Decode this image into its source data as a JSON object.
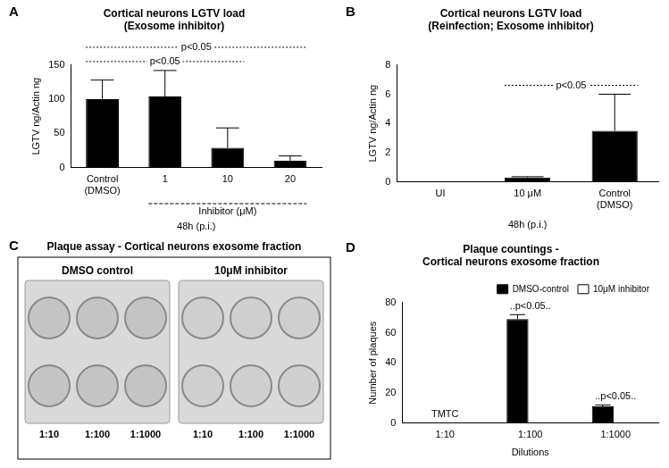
{
  "chart_data": [
    {
      "panel": "A",
      "type": "bar",
      "title": [
        "Cortical neurons LGTV load",
        "(Exosome inhibitor)"
      ],
      "y_label": "LGTV ng/Actin ng",
      "categories": [
        [
          "Control",
          "(DMSO)"
        ],
        "1",
        "10",
        "20"
      ],
      "values": [
        100,
        104,
        29,
        10
      ],
      "errors": [
        28,
        38,
        29,
        7
      ],
      "color": "#000000",
      "ylim": [
        0,
        150
      ],
      "yticks": [
        0,
        50,
        100,
        150
      ],
      "grid": false,
      "comparisons": [
        {
          "text": "p<0.05",
          "between": [
            0,
            2
          ]
        },
        {
          "text": "p<0.05",
          "between": [
            0,
            3
          ]
        }
      ],
      "group_label": {
        "text": "Inhibitor (μM)",
        "between": [
          1,
          3
        ]
      },
      "annotations": [
        "48h (p.i.)"
      ]
    },
    {
      "panel": "B",
      "type": "bar",
      "title": [
        "Cortical neurons LGTV load",
        "(Reinfection; Exosome inhibitor)"
      ],
      "y_label": "LGTV ng/Actin ng",
      "categories": [
        "UI",
        "10 μM",
        [
          "Control",
          "(DMSO)"
        ]
      ],
      "values": [
        0,
        0.3,
        3.5
      ],
      "errors": [
        0,
        0.05,
        2.5
      ],
      "color": "#000000",
      "ylim": [
        0,
        8
      ],
      "yticks": [
        0,
        2,
        4,
        6,
        8
      ],
      "grid": false,
      "comparisons": [
        {
          "text": "p<0.05",
          "between": [
            1,
            2
          ]
        }
      ],
      "annotations": [
        "48h (p.i.)"
      ]
    },
    {
      "panel": "D",
      "type": "bar",
      "title": [
        "Plaque countings -",
        "Cortical neurons exosome fraction"
      ],
      "x_label": "Dilutions",
      "y_label": "Number of plaques",
      "categories": [
        "1:10",
        "1:100",
        "1:1000"
      ],
      "series": [
        {
          "name": "DMSO-control",
          "color": "#000000",
          "values": [
            null,
            69,
            11
          ],
          "errors": [
            null,
            3,
            1
          ]
        },
        {
          "name": "10μM inhibitor",
          "color": "#ffffff",
          "values": [
            0,
            0,
            0
          ],
          "errors": [
            null,
            null,
            null
          ]
        }
      ],
      "ylim": [
        0,
        80
      ],
      "yticks": [
        0,
        20,
        40,
        60,
        80
      ],
      "grid": false,
      "legend": "top-right",
      "annotations": [
        {
          "text": "TMTC",
          "category": 0
        },
        {
          "text": "..p<0.05..",
          "category": 1
        },
        {
          "text": "..p<0.05..",
          "category": 2
        }
      ]
    }
  ],
  "plaque_assay": {
    "panel": "C",
    "title": "Plaque assay - Cortical neurons exosome fraction",
    "plates": [
      {
        "label": "DMSO control",
        "dilutions": [
          "1:10",
          "1:100",
          "1:1000"
        ]
      },
      {
        "label": "10μM inhibitor",
        "dilutions": [
          "1:10",
          "1:100",
          "1:1000"
        ]
      }
    ]
  }
}
